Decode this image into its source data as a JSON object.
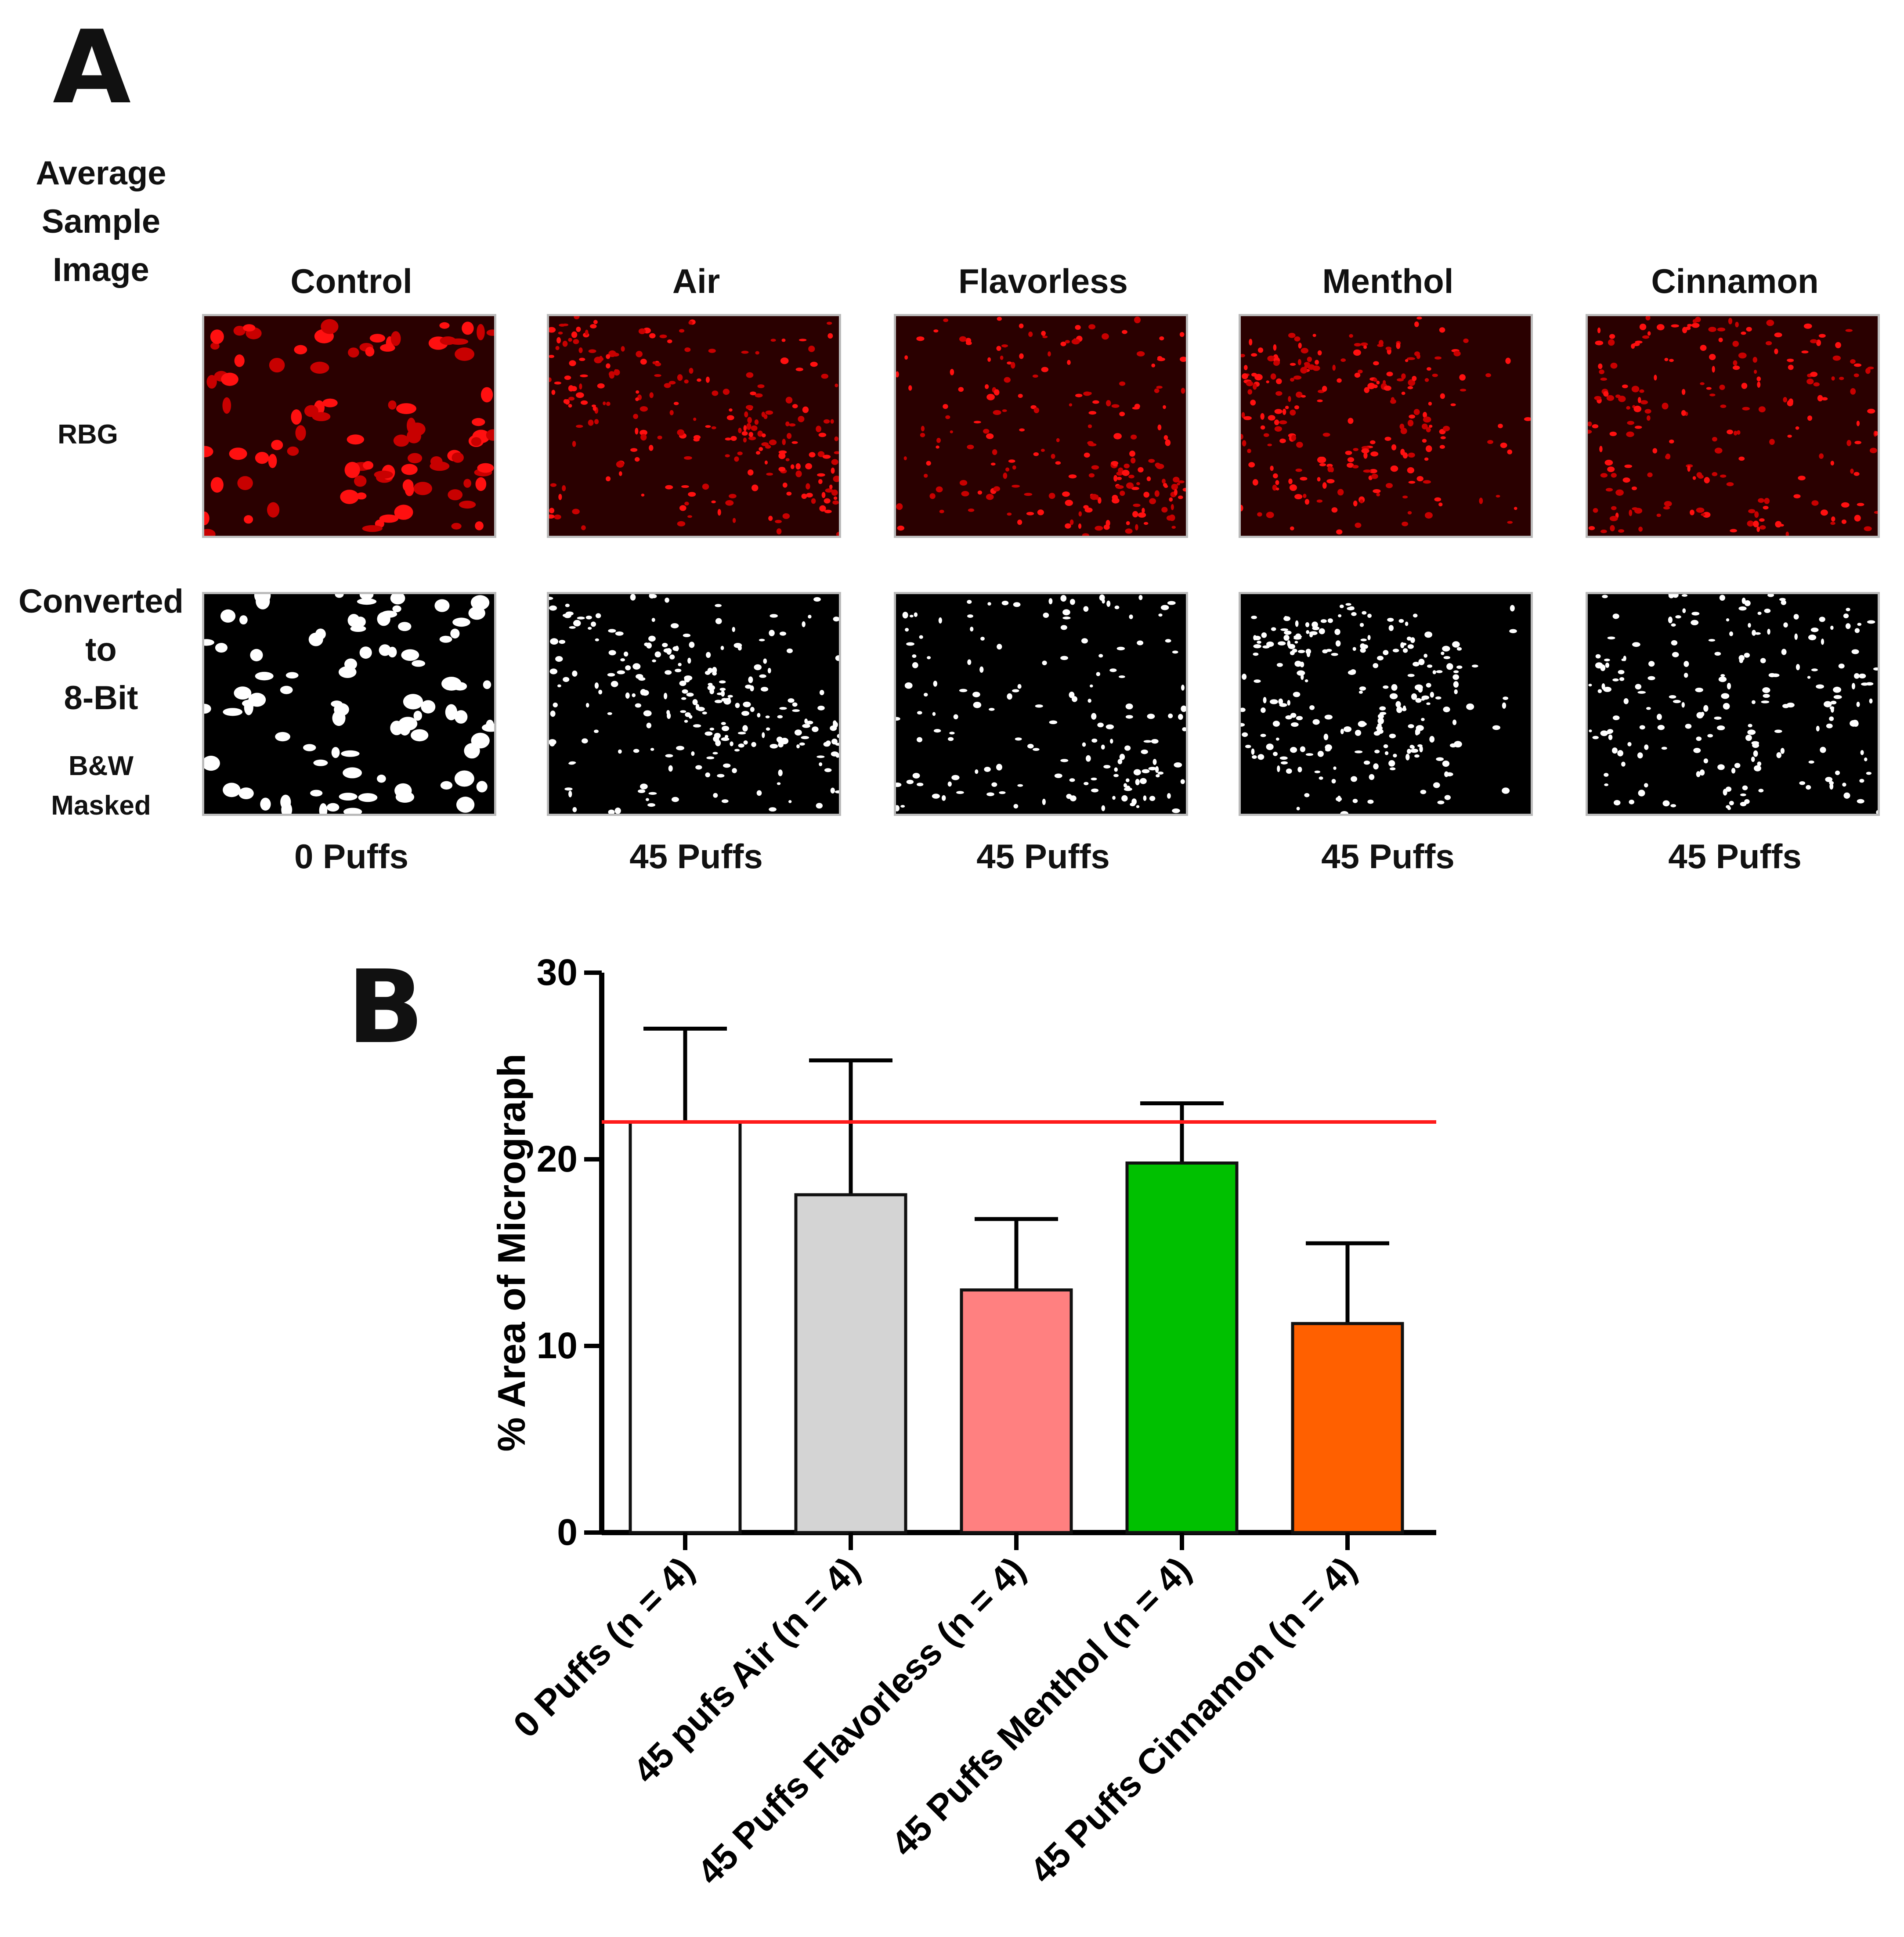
{
  "panel_a": {
    "letter": "A",
    "row_header": "Average\nSample\nImage",
    "row_rgb_label": "RBG",
    "row_bw_label_1": "Converted\nto\n8-Bit",
    "row_bw_label_2": "B&W\nMasked",
    "columns": [
      {
        "name": "Control",
        "puffs": "0 Puffs",
        "pattern": "dense-blobs"
      },
      {
        "name": "Air",
        "puffs": "45 Puffs",
        "pattern": "diagonal-band"
      },
      {
        "name": "Flavorless",
        "puffs": "45 Puffs",
        "pattern": "sparse-with-cluster"
      },
      {
        "name": "Menthol",
        "puffs": "45 Puffs",
        "pattern": "curved-arc"
      },
      {
        "name": "Cinnamon",
        "puffs": "45 Puffs",
        "pattern": "uniform-specks"
      }
    ]
  },
  "panel_b": {
    "letter": "B",
    "colors": {
      "bar_outline": "#111111",
      "reference_line": "#ff1a1a"
    }
  },
  "chart_data": {
    "type": "bar",
    "title": "",
    "xlabel": "",
    "ylabel": "% Area of Micrograph",
    "ylim": [
      0,
      30
    ],
    "yticks": [
      0,
      10,
      20,
      30
    ],
    "categories": [
      "0 Puffs (n = 4)",
      "45 pufs Air (n = 4)",
      "45 Puffs Flavorless (n = 4)",
      "45 Puffs Menthol (n = 4)",
      "45 Puffs Cinnamon (n = 4)"
    ],
    "values": [
      22.0,
      18.1,
      13.0,
      19.8,
      11.2
    ],
    "error_upper": [
      27.0,
      25.3,
      16.8,
      23.0,
      15.5
    ],
    "bar_colors": [
      "#ffffff",
      "#d4d4d4",
      "#ff8080",
      "#00c000",
      "#ff6000"
    ],
    "reference_line": 22.0,
    "grid": false,
    "legend": "none"
  }
}
